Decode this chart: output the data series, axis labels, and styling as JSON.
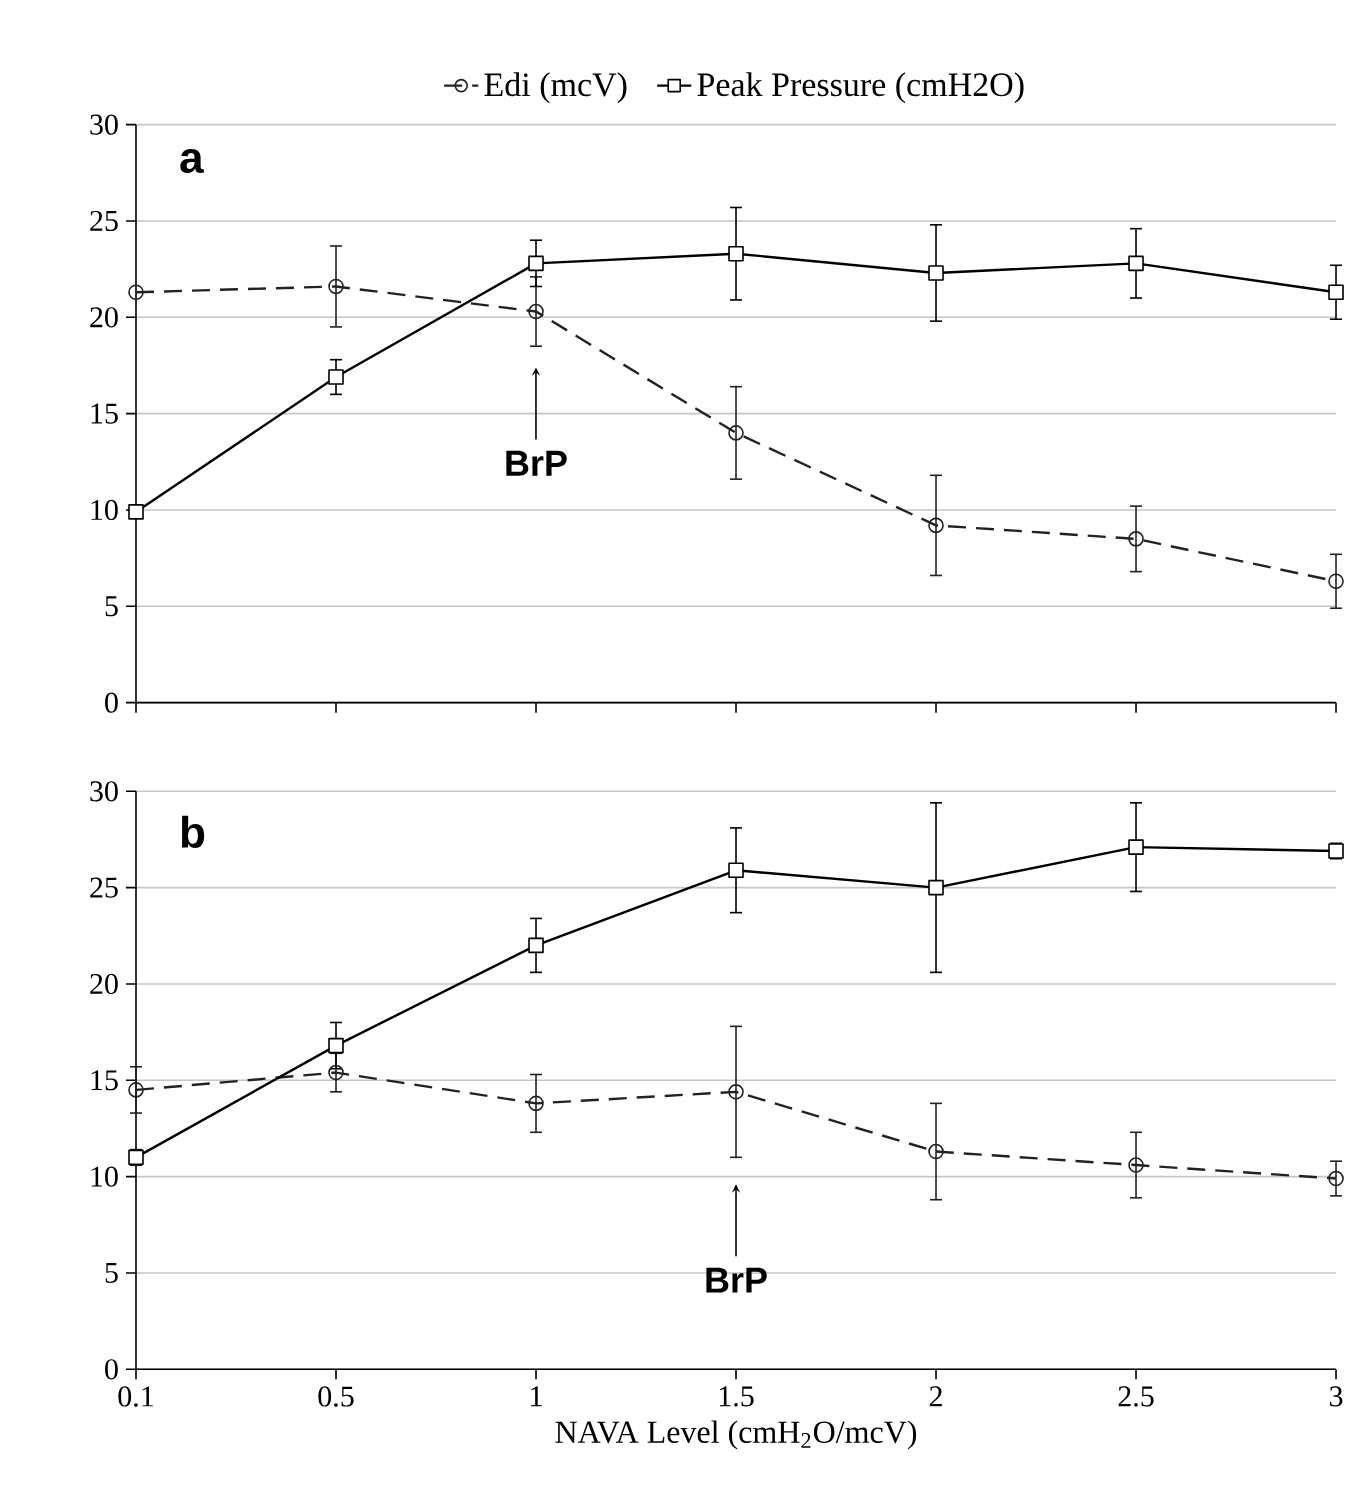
{
  "chart_data": [
    {
      "type": "line",
      "categories": [
        "0.1",
        "0.5",
        "1",
        "1.5",
        "2",
        "2.5",
        "3"
      ],
      "ylim": [
        0,
        30
      ],
      "yticks": [
        0,
        5,
        10,
        15,
        20,
        25,
        30
      ],
      "grid": "y",
      "legend": "top",
      "tick_labels": "y",
      "series": [
        {
          "name": "Edi (mcV)",
          "color": "#222222",
          "marker": "circle",
          "line_style": "dashed",
          "values": [
            21.3,
            21.6,
            20.3,
            14.0,
            9.2,
            8.5,
            6.3
          ],
          "errors": [
            null,
            2.1,
            1.8,
            2.4,
            2.6,
            1.7,
            1.4
          ]
        },
        {
          "name": "Peak Pressure (cmH2O)",
          "color": "#000000",
          "marker": "square",
          "line_style": "solid",
          "values": [
            9.9,
            16.9,
            22.8,
            23.3,
            22.3,
            22.8,
            21.3
          ],
          "errors": [
            null,
            0.9,
            1.2,
            2.4,
            2.5,
            1.8,
            1.4
          ]
        }
      ],
      "annotations": [
        "a",
        "BrP"
      ]
    },
    {
      "type": "line",
      "categories": [
        "0.1",
        "0.5",
        "1",
        "1.5",
        "2",
        "2.5",
        "3"
      ],
      "ylim": [
        0,
        30
      ],
      "yticks": [
        0,
        5,
        10,
        15,
        20,
        25,
        30
      ],
      "grid": "y",
      "xlabel": "NAVA Level (cmH$_{2}$O/mcV)",
      "series": [
        {
          "color": "#222222",
          "marker": "circle",
          "line_style": "dashed",
          "values": [
            14.5,
            15.4,
            13.8,
            14.4,
            11.3,
            10.6,
            9.9
          ],
          "errors": [
            1.2,
            1.0,
            1.5,
            3.4,
            2.5,
            1.7,
            0.9
          ]
        },
        {
          "color": "#000000",
          "marker": "square",
          "line_style": "solid",
          "values": [
            11.0,
            16.8,
            22.0,
            25.9,
            25.0,
            27.1,
            26.9
          ],
          "errors": [
            0.4,
            1.2,
            1.4,
            2.2,
            4.4,
            2.3,
            0.4
          ]
        }
      ],
      "annotations": [
        "b",
        "BrP"
      ]
    }
  ]
}
